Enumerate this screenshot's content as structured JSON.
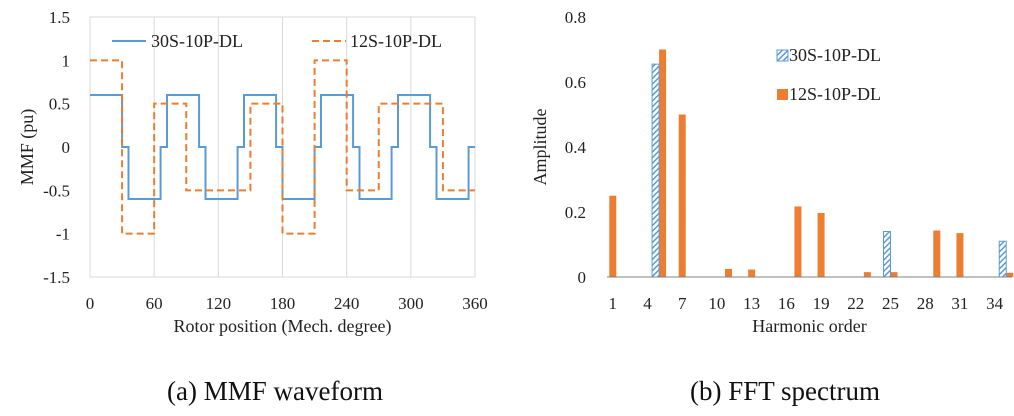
{
  "colors": {
    "blue": "#5B9BD5",
    "orange": "#ED7D31",
    "grid": "#D9D9D9",
    "axis": "#808080"
  },
  "chart_data": [
    {
      "type": "line",
      "caption": "(a) MMF waveform",
      "xlabel": "Rotor position (Mech. degree)",
      "ylabel": "MMF (pu)",
      "xlim": [
        0,
        360
      ],
      "ylim": [
        -1.5,
        1.5
      ],
      "xticks": [
        "0",
        "60",
        "120",
        "180",
        "240",
        "300",
        "360"
      ],
      "yticks": [
        "1.5",
        "1",
        "0.5",
        "0",
        "-0.5",
        "-1",
        "-1.5"
      ],
      "xtick_values": [
        0,
        60,
        120,
        180,
        240,
        300,
        360
      ],
      "ytick_values": [
        1.5,
        1,
        0.5,
        0,
        -0.5,
        -1,
        -1.5
      ],
      "grid": "vertical",
      "legend_position": "top",
      "series": [
        {
          "name": "30S-10P-DL",
          "style": "solid",
          "color": "#5B9BD5",
          "steps": [
            [
              0,
              0.6
            ],
            [
              30,
              0
            ],
            [
              36,
              -0.6
            ],
            [
              66,
              0
            ],
            [
              72,
              0.6
            ],
            [
              102,
              0
            ],
            [
              108,
              -0.6
            ],
            [
              138,
              0
            ],
            [
              144,
              0.6
            ],
            [
              174,
              0
            ],
            [
              180,
              -0.6
            ],
            [
              210,
              0
            ],
            [
              216,
              0.6
            ],
            [
              246,
              0
            ],
            [
              252,
              -0.6
            ],
            [
              282,
              0
            ],
            [
              288,
              0.6
            ],
            [
              318,
              0
            ],
            [
              324,
              -0.6
            ],
            [
              354,
              0
            ],
            [
              360,
              0
            ]
          ]
        },
        {
          "name": "12S-10P-DL",
          "style": "dashed",
          "color": "#ED7D31",
          "steps": [
            [
              0,
              1
            ],
            [
              30,
              -1
            ],
            [
              60,
              0.5
            ],
            [
              90,
              -0.5
            ],
            [
              150,
              0.5
            ],
            [
              180,
              -1
            ],
            [
              210,
              1
            ],
            [
              240,
              -0.5
            ],
            [
              270,
              0.5
            ],
            [
              330,
              -0.5
            ],
            [
              360,
              -0.5
            ]
          ]
        }
      ]
    },
    {
      "type": "bar",
      "caption": "(b) FFT spectrum",
      "xlabel": "Harmonic order",
      "ylabel": "Amplitude",
      "xlim": [
        0,
        35
      ],
      "ylim": [
        0,
        0.8
      ],
      "xticks": [
        "1",
        "4",
        "7",
        "10",
        "13",
        "16",
        "19",
        "22",
        "25",
        "28",
        "31",
        "34"
      ],
      "xtick_values": [
        1,
        4,
        7,
        10,
        13,
        16,
        19,
        22,
        25,
        28,
        31,
        34
      ],
      "yticks": [
        "0.8",
        "0.6",
        "0.4",
        "0.2",
        "0"
      ],
      "ytick_values": [
        0.8,
        0.6,
        0.4,
        0.2,
        0
      ],
      "grid": "none",
      "legend_position": "upper-right",
      "series": [
        {
          "name": "30S-10P-DL",
          "style": "hatched",
          "color": "#5B9BD5",
          "points": [
            [
              5,
              0.655
            ],
            [
              25,
              0.14
            ],
            [
              35,
              0.11
            ]
          ]
        },
        {
          "name": "12S-10P-DL",
          "style": "solid",
          "color": "#ED7D31",
          "points": [
            [
              1,
              0.25
            ],
            [
              5,
              0.7
            ],
            [
              7,
              0.5
            ],
            [
              11,
              0.025
            ],
            [
              13,
              0.023
            ],
            [
              17,
              0.217
            ],
            [
              19,
              0.197
            ],
            [
              23,
              0.015
            ],
            [
              25,
              0.015
            ],
            [
              29,
              0.143
            ],
            [
              31,
              0.135
            ],
            [
              35,
              0.013
            ]
          ]
        }
      ]
    }
  ]
}
